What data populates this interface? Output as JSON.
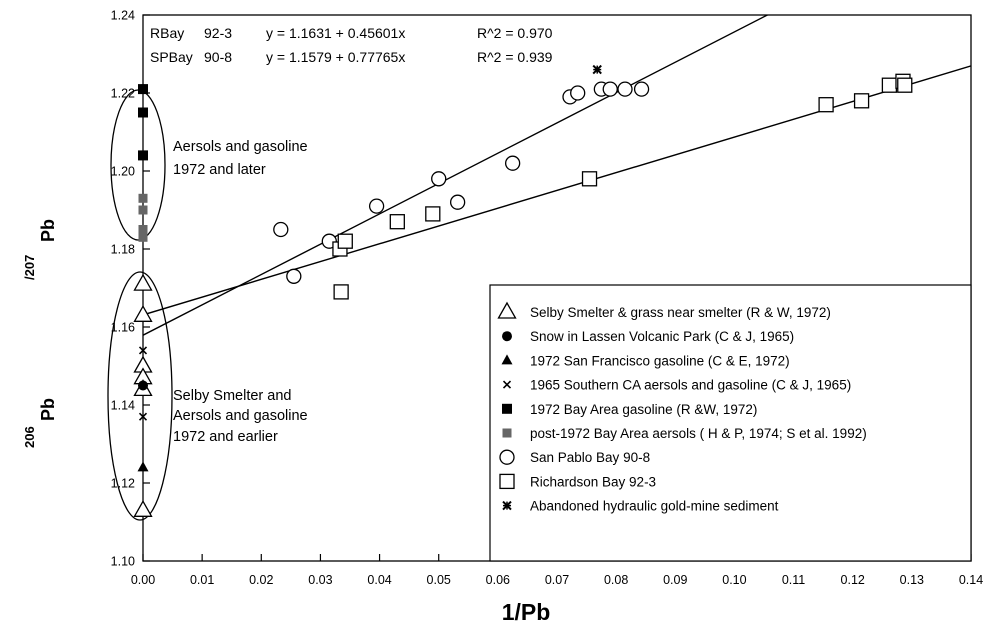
{
  "chart_data": {
    "type": "scatter",
    "title": "",
    "xlabel": "1/Pb",
    "ylabel": {
      "iso1": "206",
      "el1": "Pb",
      "iso2": "/207",
      "el2": "Pb"
    },
    "xlim": [
      0.0,
      0.14
    ],
    "ylim": [
      1.1,
      1.24
    ],
    "xticks": [
      "0.00",
      "0.01",
      "0.02",
      "0.03",
      "0.04",
      "0.05",
      "0.06",
      "0.07",
      "0.08",
      "0.09",
      "0.10",
      "0.11",
      "0.12",
      "0.13",
      "0.14"
    ],
    "yticks": [
      "1.10",
      "1.12",
      "1.14",
      "1.16",
      "1.18",
      "1.20",
      "1.22",
      "1.24"
    ],
    "grid": false,
    "legend_position": "bottom-right",
    "fits": [
      {
        "label": "RBay",
        "id": "92-3",
        "equation": "y = 1.1631 + 0.45601x",
        "r2": "R^2 = 0.970",
        "intercept": 1.1631,
        "slope": 0.45601
      },
      {
        "label": "SPBay",
        "id": "90-8",
        "equation": "y = 1.1579 + 0.77765x",
        "r2": "R^2 = 0.939",
        "intercept": 1.1579,
        "slope": 0.77765
      }
    ],
    "annotations": {
      "top": [
        "Aersols and gasoline",
        "1972 and later"
      ],
      "bottom": [
        "Selby Smelter and",
        "Aersols and gasoline",
        "1972 and earlier"
      ]
    },
    "series": [
      {
        "name": "Selby Smelter & grass near smelter (R & W, 1972)",
        "marker": "open-triangle",
        "points": [
          [
            0,
            1.171
          ],
          [
            0,
            1.163
          ],
          [
            0,
            1.15
          ],
          [
            0,
            1.147
          ],
          [
            0,
            1.144
          ],
          [
            0,
            1.113
          ]
        ]
      },
      {
        "name": "Snow in Lassen Volcanic Park (C & J, 1965)",
        "marker": "filled-circle",
        "points": [
          [
            0,
            1.221
          ],
          [
            0,
            1.145
          ]
        ]
      },
      {
        "name": "1972 San Francisco gasoline (C & E, 1972)",
        "marker": "filled-triangle",
        "points": [
          [
            0,
            1.124
          ]
        ]
      },
      {
        "name": "1965 Southern CA aersols and gasoline (C & J, 1965)",
        "marker": "x",
        "points": [
          [
            0,
            1.154
          ],
          [
            0,
            1.137
          ]
        ]
      },
      {
        "name": "1972 Bay Area gasoline (R &W, 1972)",
        "marker": "filled-square",
        "points": [
          [
            0,
            1.221
          ],
          [
            0,
            1.215
          ],
          [
            0,
            1.204
          ]
        ]
      },
      {
        "name": "post-1972 Bay Area aersols ( H & P, 1974; S et al. 1992)",
        "marker": "gray-square",
        "points": [
          [
            0,
            1.193
          ],
          [
            0,
            1.19
          ],
          [
            0,
            1.185
          ],
          [
            0,
            1.183
          ]
        ]
      },
      {
        "name": "San Pablo Bay 90-8",
        "marker": "open-circle",
        "points": [
          [
            0.0233,
            1.185
          ],
          [
            0.0255,
            1.173
          ],
          [
            0.0315,
            1.182
          ],
          [
            0.0395,
            1.191
          ],
          [
            0.05,
            1.198
          ],
          [
            0.0532,
            1.192
          ],
          [
            0.0625,
            1.202
          ],
          [
            0.0722,
            1.219
          ],
          [
            0.0735,
            1.22
          ],
          [
            0.0775,
            1.221
          ],
          [
            0.079,
            1.221
          ],
          [
            0.0815,
            1.221
          ],
          [
            0.0843,
            1.221
          ]
        ]
      },
      {
        "name": "Richardson Bay 92-3",
        "marker": "open-square",
        "points": [
          [
            0.0333,
            1.18
          ],
          [
            0.0335,
            1.169
          ],
          [
            0.0342,
            1.182
          ],
          [
            0.043,
            1.187
          ],
          [
            0.049,
            1.189
          ],
          [
            0.0755,
            1.198
          ],
          [
            0.1155,
            1.217
          ],
          [
            0.1215,
            1.218
          ],
          [
            0.1262,
            1.222
          ],
          [
            0.1285,
            1.223
          ],
          [
            0.1288,
            1.222
          ]
        ]
      },
      {
        "name": "Abandoned hydraulic gold-mine sediment",
        "marker": "star",
        "points": [
          [
            0.0768,
            1.226
          ]
        ]
      }
    ]
  }
}
